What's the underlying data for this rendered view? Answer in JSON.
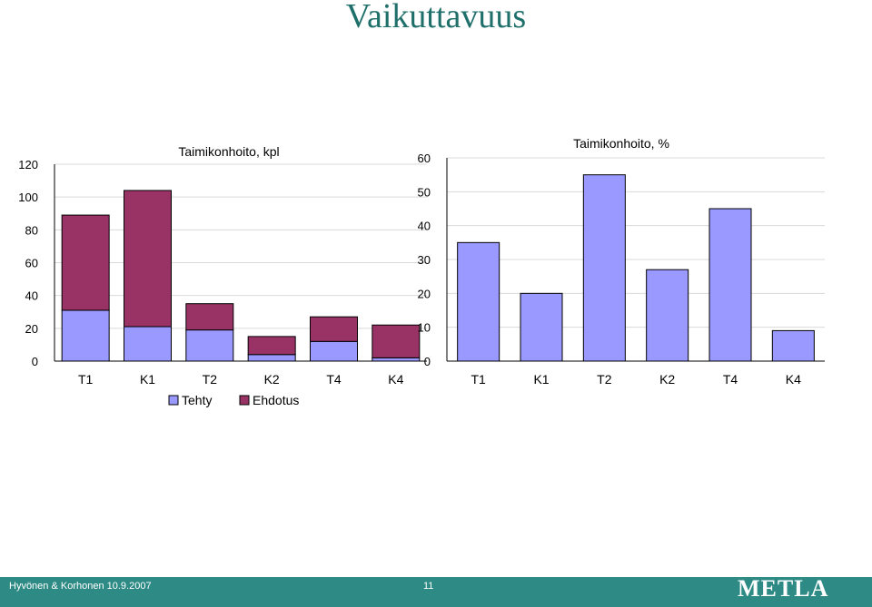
{
  "slide": {
    "title": "Vaikuttavuus",
    "footer_left": "Hyvönen & Korhonen  10.9.2007",
    "page_number": "11",
    "logo": "METLA"
  },
  "colors": {
    "tehty": "#9999ff",
    "ehdotus": "#993366",
    "footer": "#2e8a84",
    "title": "#1f6f6a"
  },
  "chart_data": [
    {
      "type": "bar",
      "stacked": true,
      "title": "Taimikonhoito, kpl",
      "categories": [
        "T1",
        "K1",
        "T2",
        "K2",
        "T4",
        "K4"
      ],
      "series": [
        {
          "name": "Tehty",
          "values": [
            31,
            21,
            19,
            4,
            12,
            2
          ]
        },
        {
          "name": "Ehdotus",
          "values": [
            58,
            83,
            16,
            11,
            15,
            20
          ]
        }
      ],
      "ylim": [
        0,
        120
      ],
      "yticks": [
        0,
        20,
        40,
        60,
        80,
        100,
        120
      ],
      "legend": "bottom"
    },
    {
      "type": "bar",
      "title": "Taimikonhoito, %",
      "categories": [
        "T1",
        "K1",
        "T2",
        "K2",
        "T4",
        "K4"
      ],
      "series": [
        {
          "values": [
            35,
            20,
            55,
            27,
            45,
            9
          ]
        }
      ],
      "ylim": [
        0,
        60
      ],
      "yticks": [
        0,
        10,
        20,
        30,
        40,
        50,
        60
      ]
    }
  ]
}
